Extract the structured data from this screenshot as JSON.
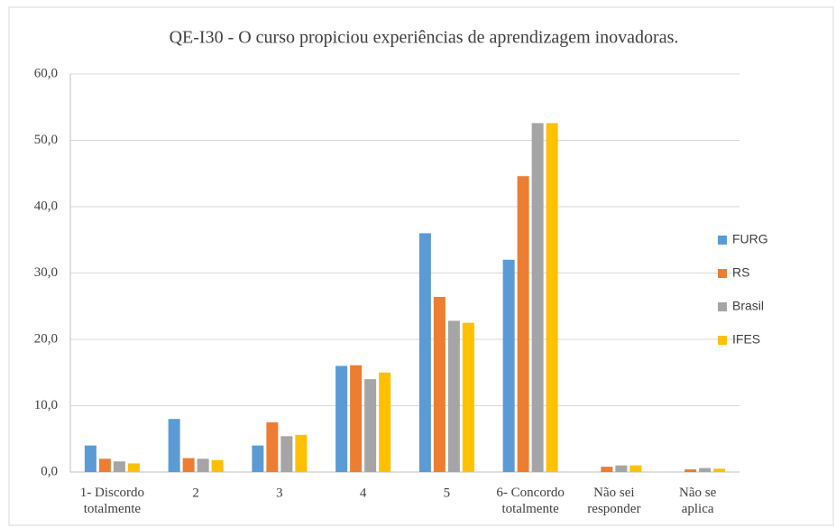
{
  "chart_data": {
    "type": "bar",
    "title": "QE-I30 - O curso propiciou experiências de aprendizagem inovadoras.",
    "categories": [
      "1- Discordo\ntotalmente",
      "2",
      "3",
      "4",
      "5",
      "6- Concordo\ntotalmente",
      "Não sei\nresponder",
      "Não se\naplica"
    ],
    "series": [
      {
        "name": "FURG",
        "color": "#5b9bd5",
        "values": [
          4.0,
          8.0,
          4.0,
          16.0,
          36.0,
          32.0,
          0,
          0
        ]
      },
      {
        "name": "RS",
        "color": "#ed7d31",
        "values": [
          2.0,
          2.1,
          7.5,
          16.1,
          26.4,
          44.6,
          0.8,
          0.4
        ]
      },
      {
        "name": "Brasil",
        "color": "#a5a5a5",
        "values": [
          1.6,
          2.0,
          5.4,
          14.0,
          22.8,
          52.6,
          1.0,
          0.6
        ]
      },
      {
        "name": "IFES",
        "color": "#ffc000",
        "values": [
          1.3,
          1.8,
          5.6,
          15.0,
          22.5,
          52.6,
          1.0,
          0.5
        ]
      }
    ],
    "ylim": [
      0,
      60
    ],
    "yticks": [
      {
        "value": 0,
        "label": "0,0"
      },
      {
        "value": 10,
        "label": "10,0"
      },
      {
        "value": 20,
        "label": "20,0"
      },
      {
        "value": 30,
        "label": "30,0"
      },
      {
        "value": 40,
        "label": "40,0"
      },
      {
        "value": 50,
        "label": "50,0"
      },
      {
        "value": 60,
        "label": "60,0"
      }
    ],
    "grid": true,
    "legend": "right"
  }
}
